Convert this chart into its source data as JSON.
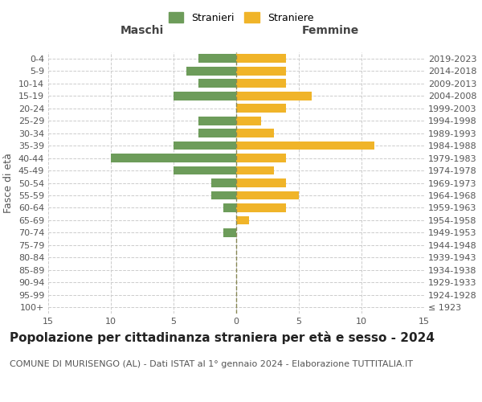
{
  "age_groups": [
    "100+",
    "95-99",
    "90-94",
    "85-89",
    "80-84",
    "75-79",
    "70-74",
    "65-69",
    "60-64",
    "55-59",
    "50-54",
    "45-49",
    "40-44",
    "35-39",
    "30-34",
    "25-29",
    "20-24",
    "15-19",
    "10-14",
    "5-9",
    "0-4"
  ],
  "birth_years": [
    "≤ 1923",
    "1924-1928",
    "1929-1933",
    "1934-1938",
    "1939-1943",
    "1944-1948",
    "1949-1953",
    "1954-1958",
    "1959-1963",
    "1964-1968",
    "1969-1973",
    "1974-1978",
    "1979-1983",
    "1984-1988",
    "1989-1993",
    "1994-1998",
    "1999-2003",
    "2004-2008",
    "2009-2013",
    "2014-2018",
    "2019-2023"
  ],
  "males": [
    0,
    0,
    0,
    0,
    0,
    0,
    1,
    0,
    1,
    2,
    2,
    5,
    10,
    5,
    3,
    3,
    0,
    5,
    3,
    4,
    3
  ],
  "females": [
    0,
    0,
    0,
    0,
    0,
    0,
    0,
    1,
    4,
    5,
    4,
    3,
    4,
    11,
    3,
    2,
    4,
    6,
    4,
    4,
    4
  ],
  "male_color": "#6d9c5a",
  "female_color": "#f0b429",
  "xlim": 15,
  "title": "Popolazione per cittadinanza straniera per età e sesso - 2024",
  "subtitle": "COMUNE DI MURISENGO (AL) - Dati ISTAT al 1° gennaio 2024 - Elaborazione TUTTITALIA.IT",
  "ylabel_left": "Fasce di età",
  "legend_male": "Stranieri",
  "legend_female": "Straniere",
  "header_left": "Maschi",
  "header_right": "Femmine",
  "bg_color": "#ffffff",
  "grid_color": "#cccccc",
  "title_fontsize": 11,
  "subtitle_fontsize": 8,
  "tick_fontsize": 8,
  "label_fontsize": 9,
  "header_fontsize": 10
}
